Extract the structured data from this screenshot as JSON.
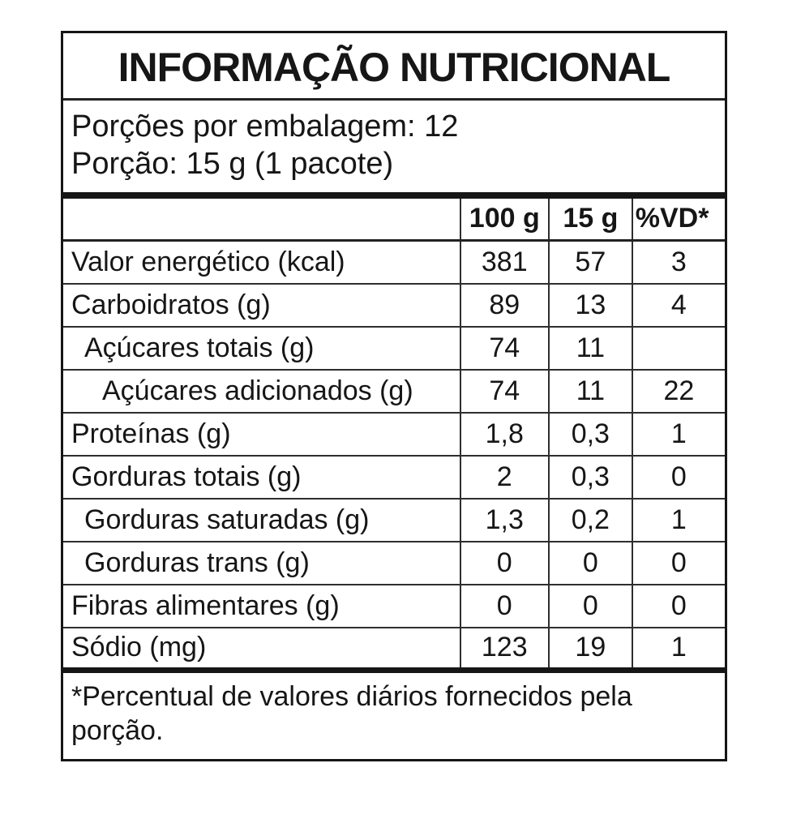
{
  "title": "INFORMAÇÃO NUTRICIONAL",
  "serving_info": {
    "servings_per_package": "Porções por embalagem: 12",
    "serving_size": "Porção: 15 g (1 pacote)"
  },
  "table": {
    "columns": [
      "",
      "100 g",
      "15 g",
      "%VD*"
    ],
    "rows": [
      {
        "label": "Valor energético (kcal)",
        "per100g": "381",
        "per15g": "57",
        "vd": "3"
      },
      {
        "label": "Carboidratos (g)",
        "per100g": "89",
        "per15g": "13",
        "vd": "4"
      },
      {
        "label": "Açúcares totais (g)",
        "per100g": "74",
        "per15g": "11",
        "vd": ""
      },
      {
        "label": "Açúcares adicionados (g)",
        "per100g": "74",
        "per15g": "11",
        "vd": "22"
      },
      {
        "label": "Proteínas (g)",
        "per100g": "1,8",
        "per15g": "0,3",
        "vd": "1"
      },
      {
        "label": "Gorduras totais (g)",
        "per100g": "2",
        "per15g": "0,3",
        "vd": "0"
      },
      {
        "label": "Gorduras saturadas (g)",
        "per100g": "1,3",
        "per15g": "0,2",
        "vd": "1"
      },
      {
        "label": "Gorduras trans (g)",
        "per100g": "0",
        "per15g": "0",
        "vd": "0"
      },
      {
        "label": "Fibras alimentares (g)",
        "per100g": "0",
        "per15g": "0",
        "vd": "0"
      },
      {
        "label": "Sódio (mg)",
        "per100g": "123",
        "per15g": "19",
        "vd": "1"
      }
    ]
  },
  "footnote": "*Percentual de valores diários fornecidos pela porção.",
  "colors": {
    "text": "#161616",
    "line": "#222222",
    "background": "#ffffff"
  }
}
